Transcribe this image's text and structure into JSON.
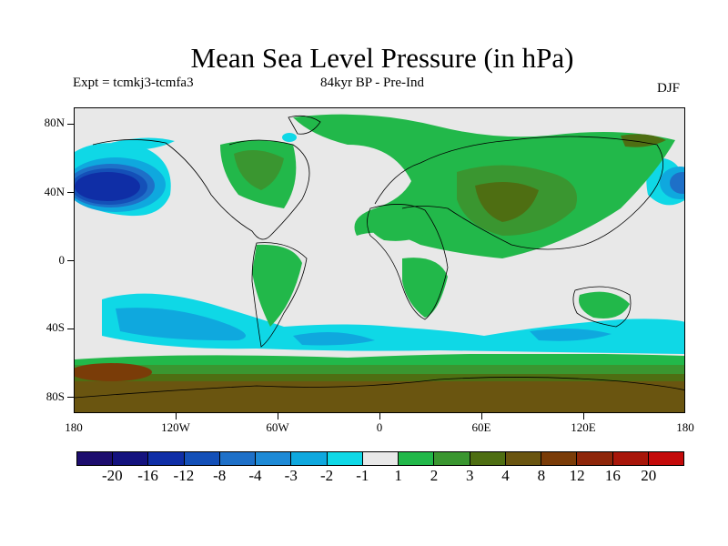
{
  "title": "Mean Sea Level Pressure (in hPa)",
  "subtitle": {
    "left": "Expt = tcmkj3-tcmfa3",
    "middle": "84kyr BP - Pre-Ind",
    "right": "DJF"
  },
  "axes": {
    "y_labels": [
      "80N",
      "40N",
      "0",
      "40S",
      "80S"
    ],
    "x_labels": [
      "180",
      "120W",
      "60W",
      "0",
      "60E",
      "120E",
      "180"
    ]
  },
  "legend": {
    "colors": [
      "#1d0d6e",
      "#14127e",
      "#0f2ea6",
      "#1450b8",
      "#1e70c8",
      "#1e8ad6",
      "#0fa8de",
      "#0fd8e6",
      "#e8e8e8",
      "#22b84a",
      "#3a9630",
      "#4e6e12",
      "#6a5510",
      "#7a3c08",
      "#8e260a",
      "#a8160a",
      "#c40a0a"
    ],
    "labels": [
      "-20",
      "-16",
      "-12",
      "-8",
      "-4",
      "-3",
      "-2",
      "-1",
      "1",
      "2",
      "3",
      "4",
      "8",
      "12",
      "16",
      "20"
    ]
  }
}
